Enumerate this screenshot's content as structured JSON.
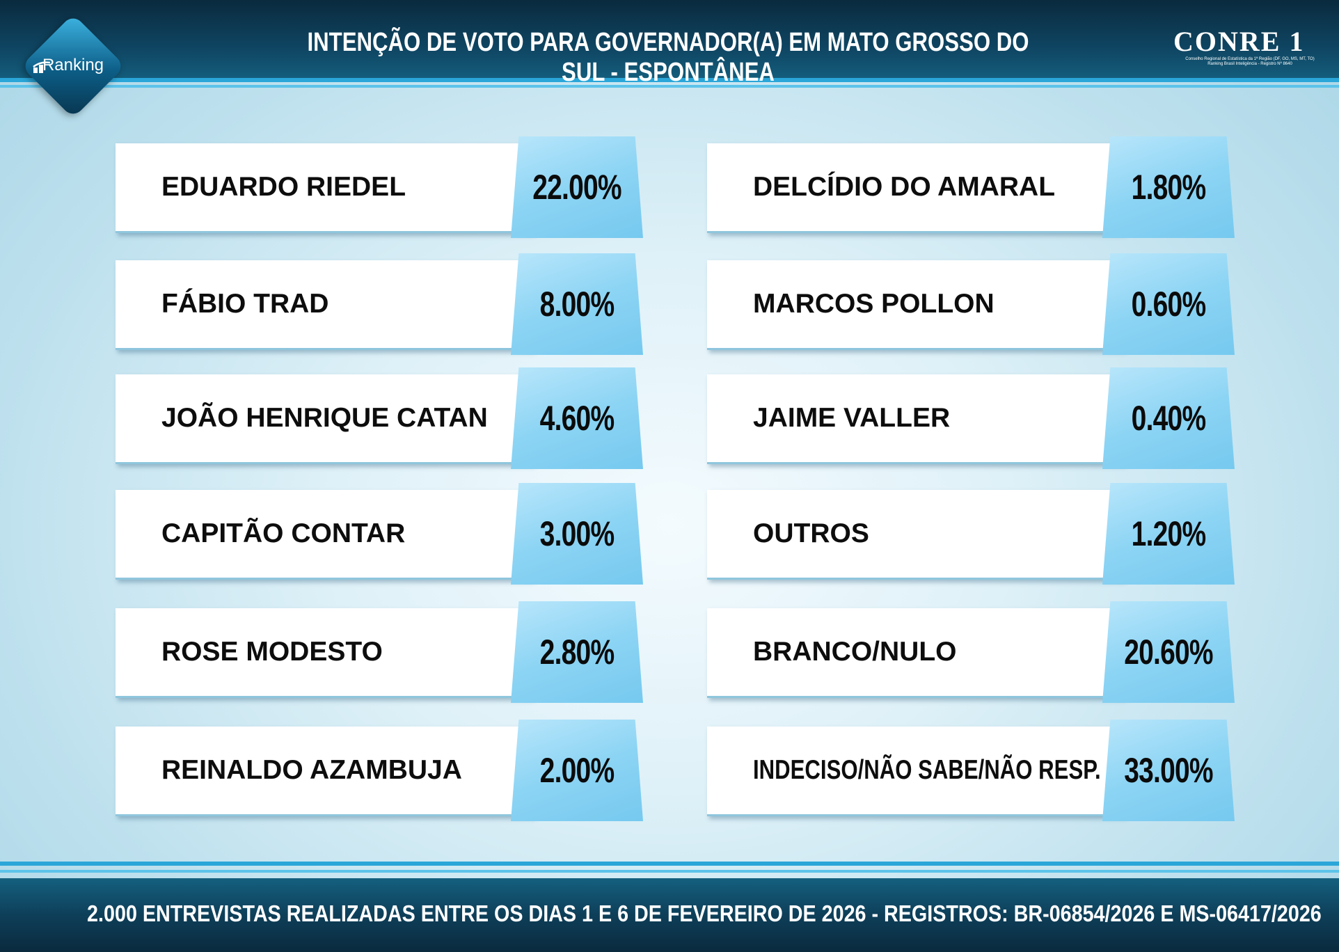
{
  "header": {
    "title": "INTENÇÃO DE VOTO PARA GOVERNADOR(A) EM MATO GROSSO DO SUL - ESPONTÂNEA",
    "badge_label": "Ranking",
    "logo_text": "CONRE 1",
    "logo_subtext": "Conselho Regional de Estatística da 1ª Região (DF, GO, MS, MT, TO) Ranking Brasil Inteligência - Registro Nº 8640"
  },
  "colors": {
    "header_dark": "#0a2a3e",
    "accent_stripe": "#2aa6d8",
    "value_box": "#8cd4f4",
    "name_box": "#ffffff"
  },
  "chart_data": {
    "type": "table",
    "title": "INTENÇÃO DE VOTO PARA GOVERNADOR(A) EM MATO GROSSO DO SUL - ESPONTÂNEA",
    "columns": [
      {
        "rows": [
          {
            "name": "EDUARDO RIEDEL",
            "value": 22.0,
            "label": "22.00%"
          },
          {
            "name": "FÁBIO TRAD",
            "value": 8.0,
            "label": "8.00%"
          },
          {
            "name": "JOÃO HENRIQUE CATAN",
            "value": 4.6,
            "label": "4.60%"
          },
          {
            "name": "CAPITÃO CONTAR",
            "value": 3.0,
            "label": "3.00%"
          },
          {
            "name": "ROSE MODESTO",
            "value": 2.8,
            "label": "2.80%"
          },
          {
            "name": "REINALDO AZAMBUJA",
            "value": 2.0,
            "label": "2.00%"
          }
        ]
      },
      {
        "rows": [
          {
            "name": "DELCÍDIO DO AMARAL",
            "value": 1.8,
            "label": "1.80%"
          },
          {
            "name": "MARCOS POLLON",
            "value": 0.6,
            "label": "0.60%"
          },
          {
            "name": "JAIME VALLER",
            "value": 0.4,
            "label": "0.40%"
          },
          {
            "name": "OUTROS",
            "value": 1.2,
            "label": "1.20%"
          },
          {
            "name": "BRANCO/NULO",
            "value": 20.6,
            "label": "20.60%"
          },
          {
            "name": "INDECISO/NÃO SABE/NÃO RESP.",
            "value": 33.0,
            "label": "33.00%"
          }
        ]
      }
    ]
  },
  "footer": {
    "note": "2.000 ENTREVISTAS REALIZADAS ENTRE OS DIAS 1 E 6 DE FEVEREIRO DE 2026 - REGISTROS: BR-06854/2026 E MS-06417/2026"
  }
}
